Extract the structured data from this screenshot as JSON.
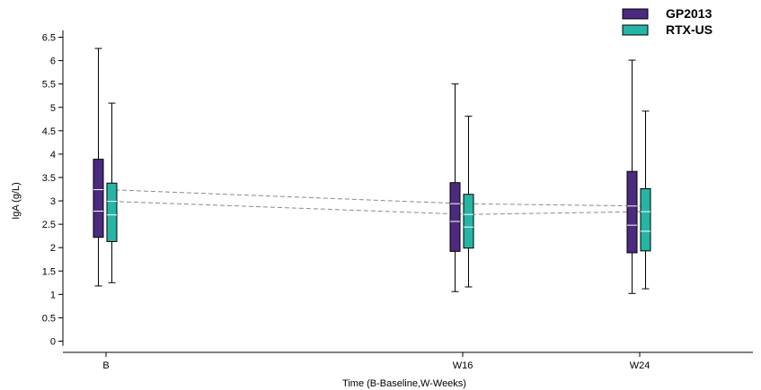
{
  "chart_data": {
    "type": "boxplot",
    "title": "",
    "xlabel": "Time (B-Baseline,W-Weeks)",
    "ylabel": "IgA (g/L)",
    "ylim": [
      -0.1,
      6.65
    ],
    "yticks": [
      0,
      0.5,
      1,
      1.5,
      2,
      2.5,
      3,
      3.5,
      4,
      4.5,
      5,
      5.5,
      6,
      6.5
    ],
    "categories": [
      "B",
      "W16",
      "W24"
    ],
    "legend_position": "top-right",
    "grid": false,
    "series": [
      {
        "name": "GP2013",
        "color": "#4b2a7f",
        "mean_line": "dashed",
        "boxes": [
          {
            "min": 1.18,
            "q1": 2.22,
            "median": 2.78,
            "mean": 3.24,
            "q3": 3.89,
            "max": 6.26
          },
          {
            "min": 1.06,
            "q1": 1.92,
            "median": 2.56,
            "mean": 2.94,
            "q3": 3.39,
            "max": 5.5
          },
          {
            "min": 1.02,
            "q1": 1.89,
            "median": 2.48,
            "mean": 2.89,
            "q3": 3.63,
            "max": 6.01
          }
        ]
      },
      {
        "name": "RTX-US",
        "color": "#26b5a5",
        "mean_line": "dashed",
        "boxes": [
          {
            "min": 1.25,
            "q1": 2.13,
            "median": 2.7,
            "mean": 2.99,
            "q3": 3.38,
            "max": 5.09
          },
          {
            "min": 1.16,
            "q1": 1.99,
            "median": 2.44,
            "mean": 2.71,
            "q3": 3.14,
            "max": 4.81
          },
          {
            "min": 1.12,
            "q1": 1.93,
            "median": 2.35,
            "mean": 2.77,
            "q3": 3.26,
            "max": 4.92
          }
        ]
      }
    ]
  }
}
